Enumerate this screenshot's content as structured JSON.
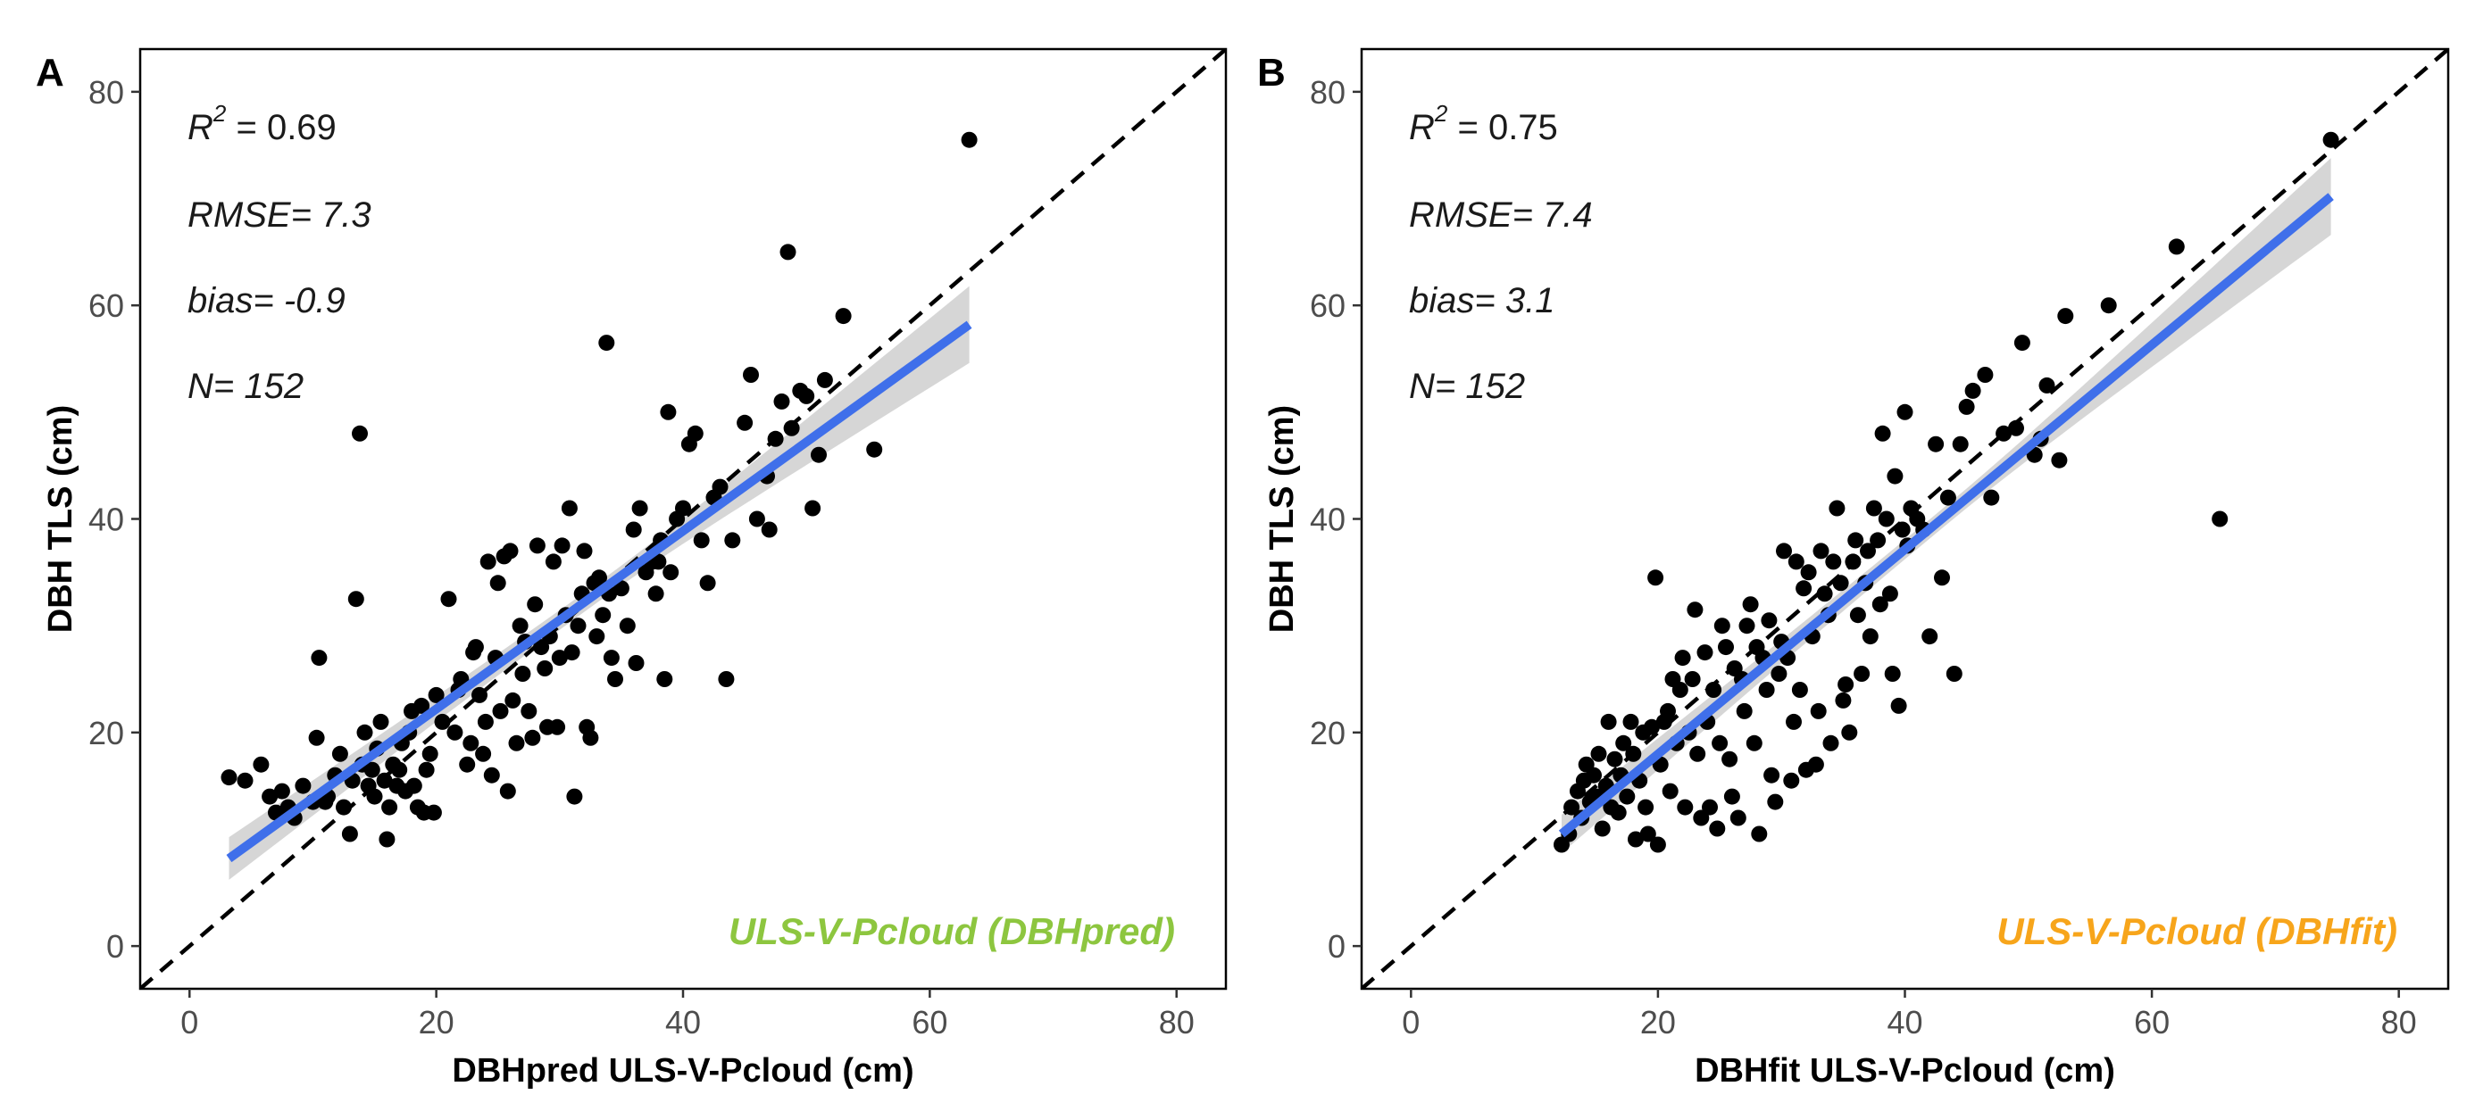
{
  "chart_data": [
    {
      "type": "scatter",
      "panel": "A",
      "xlabel": "DBHpred ULS-V-Pcloud (cm)",
      "ylabel": "DBH TLS (cm)",
      "xlim": [
        -4,
        84
      ],
      "ylim": [
        -4,
        84
      ],
      "xticks": [
        "0",
        "20",
        "40",
        "60",
        "80"
      ],
      "yticks": [
        "0",
        "20",
        "40",
        "60",
        "80"
      ],
      "stats": {
        "r2_label": "R",
        "r2_exp": "2",
        "r2_value": "= 0.69",
        "rmse": "RMSE=  7.3",
        "bias": "bias=  -0.9",
        "n": "N=  152"
      },
      "method_label": "ULS-V-Pcloud (DBHpred)",
      "method_color": "#8DC63F",
      "fit": {
        "x_start": 3.2,
        "x_end": 63.2,
        "y_start": 8.2,
        "y_end": 58.2,
        "se_start": 2.0,
        "se_mid": 0.9,
        "se_end": 3.6,
        "color": "#3F6FEA",
        "band_color": "#cfcfcf"
      },
      "identity_line": true,
      "grid": false,
      "points": [
        [
          3.2,
          15.8
        ],
        [
          4.5,
          15.5
        ],
        [
          5.8,
          17
        ],
        [
          6.5,
          14
        ],
        [
          7,
          12.5
        ],
        [
          7.5,
          14.5
        ],
        [
          8,
          13
        ],
        [
          8.5,
          12
        ],
        [
          9.2,
          15
        ],
        [
          10,
          13.5
        ],
        [
          10.3,
          19.5
        ],
        [
          10.5,
          27
        ],
        [
          11,
          13.5
        ],
        [
          11.2,
          14
        ],
        [
          11.8,
          16
        ],
        [
          12.2,
          18
        ],
        [
          12.5,
          13
        ],
        [
          13,
          10.5
        ],
        [
          13.2,
          15.5
        ],
        [
          13.5,
          32.5
        ],
        [
          13.8,
          48
        ],
        [
          14,
          17
        ],
        [
          14.2,
          20
        ],
        [
          14.5,
          15
        ],
        [
          14.8,
          16.5
        ],
        [
          15,
          14
        ],
        [
          15.2,
          18.5
        ],
        [
          15.5,
          21
        ],
        [
          15.8,
          15.5
        ],
        [
          16,
          10
        ],
        [
          16.2,
          13
        ],
        [
          16.5,
          17
        ],
        [
          16.8,
          15
        ],
        [
          17,
          16.5
        ],
        [
          17.2,
          19
        ],
        [
          17.5,
          14.5
        ],
        [
          17.8,
          20
        ],
        [
          18,
          22
        ],
        [
          18.2,
          15
        ],
        [
          18.5,
          13
        ],
        [
          18.8,
          22.5
        ],
        [
          19,
          12.5
        ],
        [
          19.2,
          16.5
        ],
        [
          19.5,
          18
        ],
        [
          19.8,
          12.5
        ],
        [
          20,
          23.5
        ],
        [
          20.5,
          21
        ],
        [
          21,
          32.5
        ],
        [
          21.5,
          20
        ],
        [
          21.8,
          24
        ],
        [
          22,
          25
        ],
        [
          22.5,
          17
        ],
        [
          22.8,
          19
        ],
        [
          23,
          27.5
        ],
        [
          23.2,
          28
        ],
        [
          23.5,
          23.5
        ],
        [
          23.8,
          18
        ],
        [
          24,
          21
        ],
        [
          24.2,
          36
        ],
        [
          24.5,
          16
        ],
        [
          24.8,
          27
        ],
        [
          25,
          34
        ],
        [
          25.2,
          22
        ],
        [
          25.5,
          36.5
        ],
        [
          25.8,
          14.5
        ],
        [
          26,
          37
        ],
        [
          26.2,
          23
        ],
        [
          26.5,
          19
        ],
        [
          26.8,
          30
        ],
        [
          27,
          25.5
        ],
        [
          27.2,
          28.5
        ],
        [
          27.5,
          22
        ],
        [
          27.8,
          19.5
        ],
        [
          28,
          32
        ],
        [
          28.2,
          37.5
        ],
        [
          28.5,
          28
        ],
        [
          28.8,
          26
        ],
        [
          29,
          20.5
        ],
        [
          29.2,
          29
        ],
        [
          29.5,
          36
        ],
        [
          29.8,
          20.5
        ],
        [
          30,
          27
        ],
        [
          30.2,
          37.5
        ],
        [
          30.5,
          31
        ],
        [
          30.8,
          41
        ],
        [
          31,
          27.5
        ],
        [
          31.2,
          14
        ],
        [
          31.5,
          30
        ],
        [
          31.8,
          33
        ],
        [
          32,
          37
        ],
        [
          32.2,
          20.5
        ],
        [
          32.5,
          19.5
        ],
        [
          32.8,
          34
        ],
        [
          33,
          29
        ],
        [
          33.2,
          34.5
        ],
        [
          33.5,
          31
        ],
        [
          33.8,
          56.5
        ],
        [
          34,
          33
        ],
        [
          34.2,
          27
        ],
        [
          34.5,
          25
        ],
        [
          35,
          33.5
        ],
        [
          35.5,
          30
        ],
        [
          36,
          39
        ],
        [
          36.2,
          26.5
        ],
        [
          36.5,
          41
        ],
        [
          37,
          35
        ],
        [
          37.5,
          36
        ],
        [
          37.8,
          33
        ],
        [
          38,
          36
        ],
        [
          38.2,
          38
        ],
        [
          38.5,
          25
        ],
        [
          38.8,
          50
        ],
        [
          39,
          35
        ],
        [
          39.5,
          40
        ],
        [
          40,
          41
        ],
        [
          40.5,
          47
        ],
        [
          41,
          48
        ],
        [
          41.5,
          38
        ],
        [
          42,
          34
        ],
        [
          42.5,
          42
        ],
        [
          43,
          43
        ],
        [
          43.5,
          25
        ],
        [
          44,
          38
        ],
        [
          45,
          49
        ],
        [
          45.5,
          53.5
        ],
        [
          46,
          40
        ],
        [
          46.8,
          44
        ],
        [
          47,
          39
        ],
        [
          47.5,
          47.5
        ],
        [
          48,
          51
        ],
        [
          48.5,
          65
        ],
        [
          48.8,
          48.5
        ],
        [
          49.5,
          52
        ],
        [
          50,
          51.5
        ],
        [
          50.5,
          41
        ],
        [
          51,
          46
        ],
        [
          51.5,
          53
        ],
        [
          53,
          59
        ],
        [
          55.5,
          46.5
        ],
        [
          63.2,
          75.5
        ]
      ]
    },
    {
      "type": "scatter",
      "panel": "B",
      "xlabel": "DBHfit ULS-V-Pcloud (cm)",
      "ylabel": "DBH TLS (cm)",
      "xlim": [
        -4,
        84
      ],
      "ylim": [
        -4,
        84
      ],
      "xticks": [
        "0",
        "20",
        "40",
        "60",
        "80"
      ],
      "yticks": [
        "0",
        "20",
        "40",
        "60",
        "80"
      ],
      "stats": {
        "r2_label": "R",
        "r2_exp": "2",
        "r2_value": "= 0.75",
        "rmse": "RMSE=  7.4",
        "bias": "bias=  3.1",
        "n": "N=  152"
      },
      "method_label": "ULS-V-Pcloud (DBHfit)",
      "method_color": "#F7A51B",
      "fit": {
        "x_start": 12.2,
        "x_end": 74.5,
        "y_start": 10.5,
        "y_end": 70.2,
        "se_start": 1.8,
        "se_mid": 0.9,
        "se_end": 3.6,
        "color": "#3F6FEA",
        "band_color": "#cfcfcf"
      },
      "identity_line": true,
      "grid": false,
      "points": [
        [
          12.2,
          9.5
        ],
        [
          12.8,
          10.5
        ],
        [
          13,
          13
        ],
        [
          13.5,
          14.5
        ],
        [
          13.8,
          12
        ],
        [
          14,
          15.5
        ],
        [
          14.2,
          17
        ],
        [
          14.5,
          13.5
        ],
        [
          14.8,
          16
        ],
        [
          15,
          14
        ],
        [
          15.2,
          18
        ],
        [
          15.5,
          11
        ],
        [
          15.8,
          15
        ],
        [
          16,
          21
        ],
        [
          16.2,
          13
        ],
        [
          16.5,
          17.5
        ],
        [
          16.8,
          12.5
        ],
        [
          17,
          16
        ],
        [
          17.2,
          19
        ],
        [
          17.5,
          14
        ],
        [
          17.8,
          21
        ],
        [
          18,
          18
        ],
        [
          18.2,
          10
        ],
        [
          18.5,
          15.5
        ],
        [
          18.8,
          20
        ],
        [
          19,
          13
        ],
        [
          19.2,
          10.5
        ],
        [
          19.5,
          20.5
        ],
        [
          19.8,
          34.5
        ],
        [
          20,
          9.5
        ],
        [
          20.2,
          17
        ],
        [
          20.5,
          21
        ],
        [
          20.8,
          22
        ],
        [
          21,
          14.5
        ],
        [
          21.2,
          25
        ],
        [
          21.5,
          19
        ],
        [
          21.8,
          24
        ],
        [
          22,
          27
        ],
        [
          22.2,
          13
        ],
        [
          22.5,
          20
        ],
        [
          22.8,
          25
        ],
        [
          23,
          31.5
        ],
        [
          23.2,
          18
        ],
        [
          23.5,
          12
        ],
        [
          23.8,
          27.5
        ],
        [
          24,
          21
        ],
        [
          24.2,
          13
        ],
        [
          24.5,
          24
        ],
        [
          24.8,
          11
        ],
        [
          25,
          19
        ],
        [
          25.2,
          30
        ],
        [
          25.5,
          28
        ],
        [
          25.8,
          17.5
        ],
        [
          26,
          14
        ],
        [
          26.2,
          26
        ],
        [
          26.5,
          12
        ],
        [
          26.8,
          25
        ],
        [
          27,
          22
        ],
        [
          27.2,
          30
        ],
        [
          27.5,
          32
        ],
        [
          27.8,
          19
        ],
        [
          28,
          28
        ],
        [
          28.2,
          10.5
        ],
        [
          28.5,
          27
        ],
        [
          28.8,
          24
        ],
        [
          29,
          30.5
        ],
        [
          29.2,
          16
        ],
        [
          29.5,
          13.5
        ],
        [
          29.8,
          25.5
        ],
        [
          30,
          28.5
        ],
        [
          30.2,
          37
        ],
        [
          30.5,
          27
        ],
        [
          30.8,
          15.5
        ],
        [
          31,
          21
        ],
        [
          31.2,
          36
        ],
        [
          31.5,
          24
        ],
        [
          31.8,
          33.5
        ],
        [
          32,
          16.5
        ],
        [
          32.2,
          35
        ],
        [
          32.5,
          29
        ],
        [
          32.8,
          17
        ],
        [
          33,
          22
        ],
        [
          33.2,
          37
        ],
        [
          33.5,
          33
        ],
        [
          33.8,
          31
        ],
        [
          34,
          19
        ],
        [
          34.2,
          36
        ],
        [
          34.5,
          41
        ],
        [
          34.8,
          34
        ],
        [
          35,
          23
        ],
        [
          35.2,
          24.5
        ],
        [
          35.5,
          20
        ],
        [
          35.8,
          36
        ],
        [
          36,
          38
        ],
        [
          36.2,
          31
        ],
        [
          36.5,
          25.5
        ],
        [
          36.8,
          34
        ],
        [
          37,
          37
        ],
        [
          37.2,
          29
        ],
        [
          37.5,
          41
        ],
        [
          37.8,
          38
        ],
        [
          38,
          32
        ],
        [
          38.2,
          48
        ],
        [
          38.5,
          40
        ],
        [
          38.8,
          33
        ],
        [
          39,
          25.5
        ],
        [
          39.2,
          44
        ],
        [
          39.5,
          22.5
        ],
        [
          39.8,
          39
        ],
        [
          40,
          50
        ],
        [
          40.2,
          37.5
        ],
        [
          40.5,
          41
        ],
        [
          41,
          40
        ],
        [
          41.5,
          39
        ],
        [
          42,
          29
        ],
        [
          42.5,
          47
        ],
        [
          43,
          34.5
        ],
        [
          43.5,
          42
        ],
        [
          44,
          25.5
        ],
        [
          44.5,
          47
        ],
        [
          45,
          50.5
        ],
        [
          45.5,
          52
        ],
        [
          46.5,
          53.5
        ],
        [
          47,
          42
        ],
        [
          48,
          48
        ],
        [
          49,
          48.5
        ],
        [
          49.5,
          56.5
        ],
        [
          50.5,
          46
        ],
        [
          51,
          47.5
        ],
        [
          51.5,
          52.5
        ],
        [
          52.5,
          45.5
        ],
        [
          53,
          59
        ],
        [
          56.5,
          60
        ],
        [
          62,
          65.5
        ],
        [
          65.5,
          40
        ],
        [
          74.5,
          75.5
        ]
      ]
    }
  ]
}
